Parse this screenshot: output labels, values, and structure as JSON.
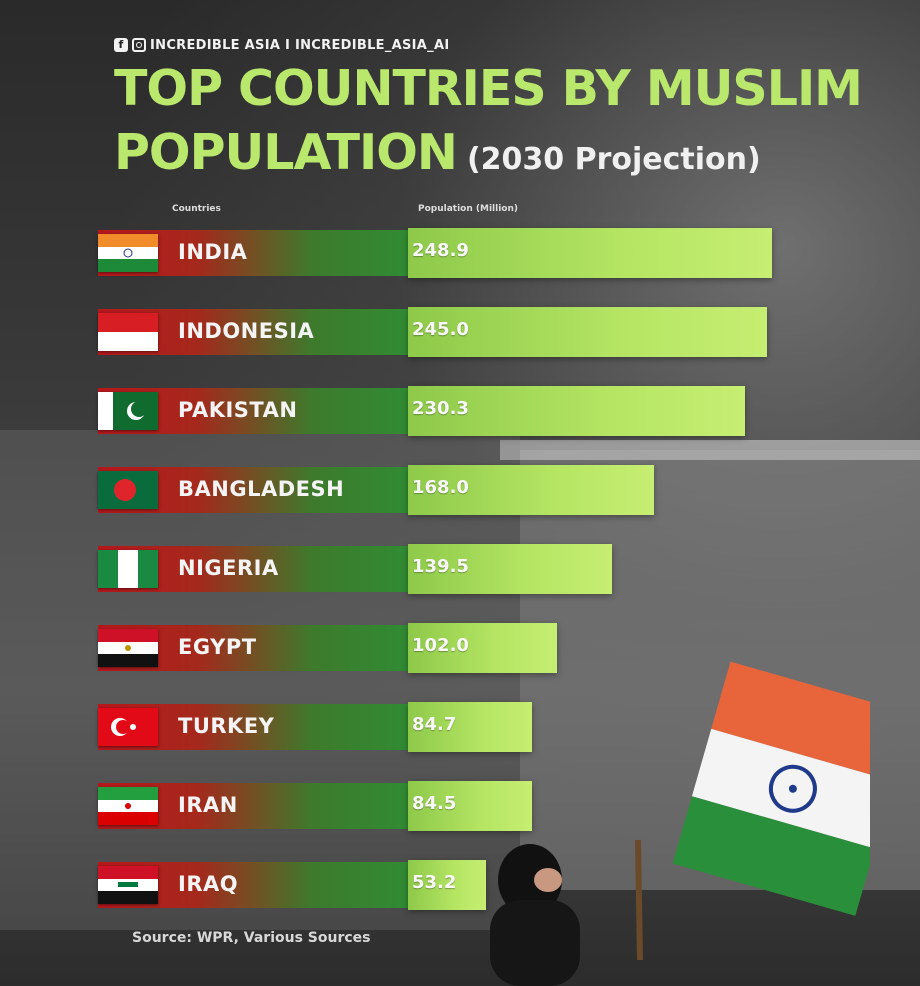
{
  "header": {
    "social_handle": "INCREDIBLE ASIA I INCREDIBLE_ASIA_AI",
    "title_line1": "TOP COUNTRIES BY MUSLIM",
    "title_line2": "POPULATION",
    "subtitle": "(2030 Projection)"
  },
  "columns": {
    "countries": "Countries",
    "population": "Population (Million)"
  },
  "source": "Source: WPR, Various Sources",
  "colors": {
    "title": "#b9e86c",
    "value_bar": "#b5e563",
    "name_bar_start": "#b8171c",
    "name_bar_end": "#2e8f35"
  },
  "chart_data": {
    "type": "bar",
    "title": "TOP COUNTRIES BY MUSLIM POPULATION (2030 Projection)",
    "xlabel": "Countries",
    "ylabel": "Population (Million)",
    "categories": [
      "INDIA",
      "INDONESIA",
      "PAKISTAN",
      "BANGLADESH",
      "NIGERIA",
      "EGYPT",
      "TURKEY",
      "IRAN",
      "IRAQ"
    ],
    "values": [
      248.9,
      245.0,
      230.3,
      168.0,
      139.5,
      102.0,
      84.7,
      84.5,
      53.2
    ],
    "value_labels": [
      "248.9",
      "245.0",
      "230.3",
      "168.0",
      "139.5",
      "102.0",
      "84.7",
      "84.5",
      "53.2"
    ],
    "flags": [
      "india-flag-icon",
      "indonesia-flag-icon",
      "pakistan-flag-icon",
      "bangladesh-flag-icon",
      "nigeria-flag-icon",
      "egypt-flag-icon",
      "turkey-flag-icon",
      "iran-flag-icon",
      "iraq-flag-icon"
    ]
  }
}
